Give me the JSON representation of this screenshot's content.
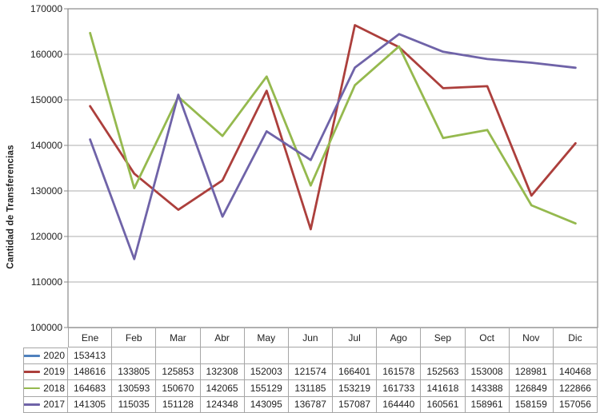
{
  "chart_data": {
    "type": "line",
    "title": "",
    "xlabel": "",
    "ylabel": "Cantidad de Transferencias",
    "ylim": [
      100000,
      170000
    ],
    "ytick_step": 10000,
    "ytick_labels": [
      "170000",
      "160000",
      "150000",
      "140000",
      "130000",
      "120000",
      "110000",
      "100000"
    ],
    "grid": true,
    "legend_position": "data-table-row-headers",
    "categories": [
      "Ene",
      "Feb",
      "Mar",
      "Abr",
      "May",
      "Jun",
      "Jul",
      "Ago",
      "Sep",
      "Oct",
      "Nov",
      "Dic"
    ],
    "series": [
      {
        "name": "2020",
        "color": "#4F81BD",
        "key_weight": 3,
        "values": [
          153413,
          null,
          null,
          null,
          null,
          null,
          null,
          null,
          null,
          null,
          null,
          null
        ]
      },
      {
        "name": "2019",
        "color": "#AC3F3C",
        "key_weight": 3,
        "values": [
          148616,
          133805,
          125853,
          132308,
          152003,
          121574,
          166401,
          161578,
          152563,
          153008,
          128981,
          140468
        ]
      },
      {
        "name": "2018",
        "color": "#95B94E",
        "key_weight": 2,
        "values": [
          164683,
          130593,
          150670,
          142065,
          155129,
          131185,
          153219,
          161733,
          141618,
          143388,
          126849,
          122866
        ]
      },
      {
        "name": "2017",
        "color": "#6F63A8",
        "key_weight": 3,
        "values": [
          141305,
          115035,
          151128,
          124348,
          143095,
          136787,
          157087,
          164440,
          160561,
          158961,
          158159,
          157056
        ]
      }
    ],
    "colors": {
      "gridline": "#ACACAC",
      "plot_border": "#8A8A8A",
      "table_border": "#A6A6A6",
      "text": "#212121"
    }
  }
}
